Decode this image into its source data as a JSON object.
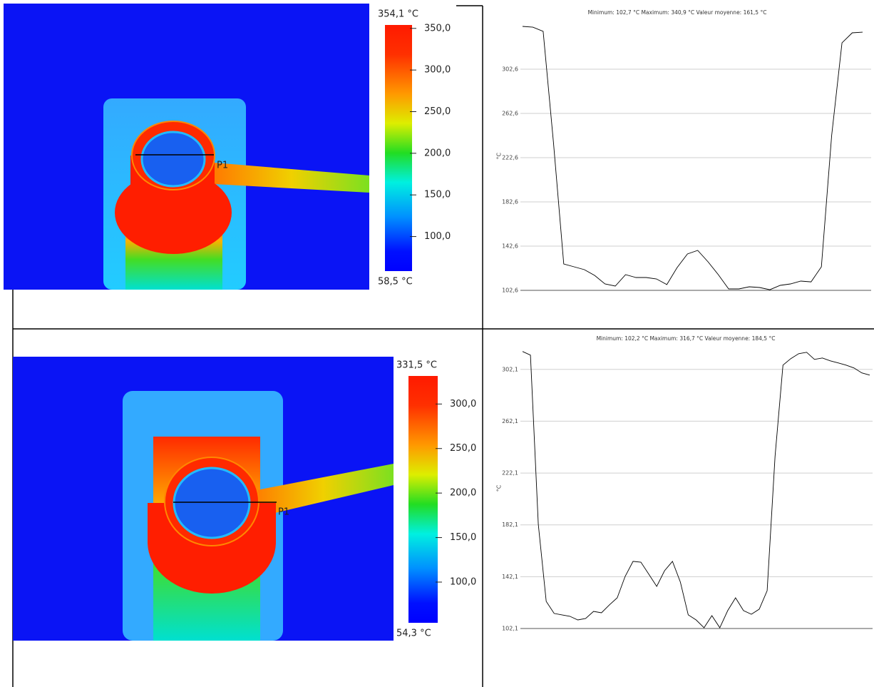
{
  "chart_data": [
    {
      "type": "line",
      "title": "Minimum: 102,7 °C Maximum: 340,9 °C Valeur moyenne: 161,5 °C",
      "y_label": "°C",
      "ylim": [
        102.6,
        345.5
      ],
      "yticks": [
        {
          "value": 102.6,
          "label": "102,6"
        },
        {
          "value": 142.6,
          "label": "142,6"
        },
        {
          "value": 182.6,
          "label": "182,6"
        },
        {
          "value": 222.6,
          "label": "222,6"
        },
        {
          "value": 262.6,
          "label": "262,6"
        },
        {
          "value": 302.6,
          "label": "302,6"
        }
      ],
      "grid": true,
      "series": [
        {
          "color": "#000000",
          "values": [
            341.3,
            340.6,
            336.8,
            236.1,
            126.5,
            123.9,
            121.3,
            116.1,
            108.4,
            106.5,
            116.8,
            114.2,
            114.2,
            112.9,
            107.8,
            123.2,
            135.5,
            138.7,
            128.4,
            116.8,
            103.9,
            103.9,
            105.8,
            105.2,
            103.2,
            107.1,
            108.4,
            111.0,
            110.3,
            123.9,
            242.6,
            326.4,
            335.5,
            336.1
          ]
        }
      ]
    },
    {
      "type": "line",
      "title": "Minimum: 102,2 °C Maximum: 316,7 °C Valeur moyenne: 184,5 °C",
      "y_label": "°C",
      "ylim": [
        102.1,
        318.5
      ],
      "yticks": [
        {
          "value": 102.1,
          "label": "102,1"
        },
        {
          "value": 142.1,
          "label": "142,1"
        },
        {
          "value": 182.1,
          "label": "182,1"
        },
        {
          "value": 222.1,
          "label": "222,1"
        },
        {
          "value": 262.1,
          "label": "262,1"
        },
        {
          "value": 302.1,
          "label": "302,1"
        }
      ],
      "grid": true,
      "series": [
        {
          "color": "#000000",
          "values": [
            315.9,
            313.1,
            182.5,
            123.0,
            113.7,
            112.6,
            111.5,
            108.7,
            109.8,
            115.3,
            114.2,
            120.3,
            125.8,
            142.3,
            153.9,
            153.3,
            144.0,
            134.6,
            146.7,
            153.9,
            137.9,
            112.6,
            108.7,
            102.7,
            112.0,
            102.7,
            115.9,
            125.8,
            115.9,
            113.1,
            117.0,
            131.3,
            234.9,
            305.4,
            310.4,
            314.2,
            315.3,
            309.8,
            310.9,
            308.7,
            307.1,
            305.4,
            303.2,
            299.4,
            297.7
          ]
        }
      ]
    }
  ],
  "thermal_images": [
    {
      "marker": "P1",
      "scale_max": {
        "value": 354.1,
        "label": "354,1 °C"
      },
      "scale_min": {
        "value": 58.5,
        "label": "58,5 °C"
      },
      "scale_ticks": [
        {
          "value": 100,
          "label": "100,0"
        },
        {
          "value": 150,
          "label": "150,0"
        },
        {
          "value": 200,
          "label": "200,0"
        },
        {
          "value": 250,
          "label": "250,0"
        },
        {
          "value": 300,
          "label": "300,0"
        },
        {
          "value": 350,
          "label": "350,0"
        }
      ]
    },
    {
      "marker": "P1",
      "scale_max": {
        "value": 331.5,
        "label": "331,5 °C"
      },
      "scale_min": {
        "value": 54.3,
        "label": "54,3 °C"
      },
      "scale_ticks": [
        {
          "value": 100,
          "label": "100,0"
        },
        {
          "value": 150,
          "label": "150,0"
        },
        {
          "value": 200,
          "label": "200,0"
        },
        {
          "value": 250,
          "label": "250,0"
        },
        {
          "value": 300,
          "label": "300,0"
        }
      ]
    }
  ]
}
